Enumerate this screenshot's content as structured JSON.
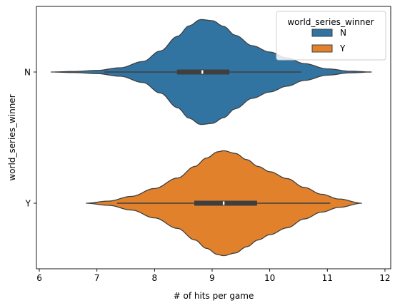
{
  "chart_data": {
    "type": "violin",
    "orientation": "horizontal",
    "title": "",
    "xlabel": "# of hits per game",
    "ylabel": "world_series_winner",
    "xlim": [
      5.95,
      12.1
    ],
    "xticks": [
      6,
      7,
      8,
      9,
      10,
      11,
      12
    ],
    "categories": [
      "N",
      "Y"
    ],
    "legend": {
      "title": "world_series_winner",
      "placement": "top-right",
      "entries": [
        {
          "label": "N",
          "color": "#3274a1"
        },
        {
          "label": "Y",
          "color": "#e1812c"
        }
      ]
    },
    "grid": false,
    "series": [
      {
        "category": "N",
        "color": "#3274a1",
        "extent": [
          6.2,
          11.77
        ],
        "whisker": [
          7.13,
          10.55
        ],
        "q1": 8.39,
        "median": 8.83,
        "q3": 9.3,
        "density_profile": [
          [
            6.2,
            0.0
          ],
          [
            6.6,
            0.01
          ],
          [
            7.0,
            0.03
          ],
          [
            7.4,
            0.08
          ],
          [
            7.8,
            0.2
          ],
          [
            8.1,
            0.4
          ],
          [
            8.4,
            0.68
          ],
          [
            8.6,
            0.88
          ],
          [
            8.8,
            1.0
          ],
          [
            9.0,
            0.98
          ],
          [
            9.2,
            0.87
          ],
          [
            9.4,
            0.7
          ],
          [
            9.7,
            0.5
          ],
          [
            10.0,
            0.38
          ],
          [
            10.3,
            0.27
          ],
          [
            10.6,
            0.16
          ],
          [
            11.0,
            0.06
          ],
          [
            11.4,
            0.015
          ],
          [
            11.77,
            0.0
          ]
        ]
      },
      {
        "category": "Y",
        "color": "#e1812c",
        "extent": [
          6.81,
          11.6
        ],
        "whisker": [
          7.35,
          11.05
        ],
        "q1": 8.69,
        "median": 9.2,
        "q3": 9.78,
        "density_profile": [
          [
            6.81,
            0.0
          ],
          [
            7.2,
            0.04
          ],
          [
            7.6,
            0.13
          ],
          [
            8.0,
            0.28
          ],
          [
            8.4,
            0.48
          ],
          [
            8.7,
            0.7
          ],
          [
            8.9,
            0.86
          ],
          [
            9.1,
            0.98
          ],
          [
            9.2,
            1.0
          ],
          [
            9.4,
            0.95
          ],
          [
            9.6,
            0.83
          ],
          [
            9.8,
            0.7
          ],
          [
            10.0,
            0.6
          ],
          [
            10.3,
            0.47
          ],
          [
            10.6,
            0.3
          ],
          [
            10.9,
            0.17
          ],
          [
            11.2,
            0.08
          ],
          [
            11.6,
            0.0
          ]
        ]
      }
    ]
  }
}
